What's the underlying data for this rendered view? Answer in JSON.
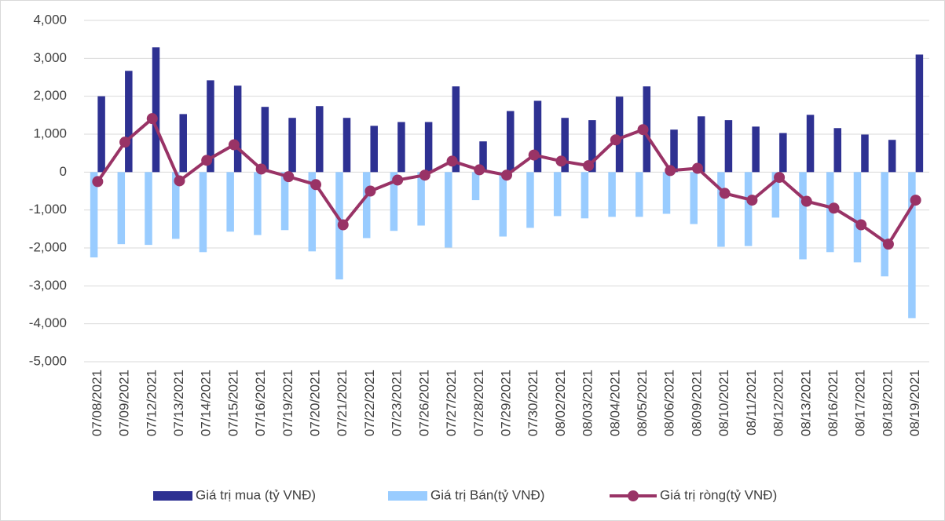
{
  "chart_data": {
    "type": "bar-line",
    "categories": [
      "07/08/2021",
      "07/09/2021",
      "07/12/2021",
      "07/13/2021",
      "07/14/2021",
      "07/15/2021",
      "07/16/2021",
      "07/19/2021",
      "07/20/2021",
      "07/21/2021",
      "07/22/2021",
      "07/23/2021",
      "07/26/2021",
      "07/27/2021",
      "07/28/2021",
      "07/29/2021",
      "07/30/2021",
      "08/02/2021",
      "08/03/2021",
      "08/04/2021",
      "08/05/2021",
      "08/06/2021",
      "08/09/2021",
      "08/10/2021",
      "08/11/2021",
      "08/12/2021",
      "08/13/2021",
      "08/16/2021",
      "08/17/2021",
      "08/18/2021",
      "08/19/2021"
    ],
    "series": [
      {
        "name": "Giá trị mua (tỷ VNĐ)",
        "color": "#2e3192",
        "kind": "bar",
        "values": [
          2000,
          2670,
          3290,
          1530,
          2420,
          2280,
          1720,
          1430,
          1740,
          1430,
          1220,
          1320,
          1320,
          2260,
          810,
          1610,
          1880,
          1430,
          1370,
          1990,
          2260,
          1120,
          1470,
          1370,
          1200,
          1030,
          1510,
          1160,
          990,
          850,
          3100
        ]
      },
      {
        "name": "Giá trị Bán(tỷ VNĐ)",
        "color": "#99ccff",
        "kind": "bar",
        "values": [
          -2250,
          -1900,
          -1920,
          -1760,
          -2110,
          -1570,
          -1660,
          -1530,
          -2090,
          -2830,
          -1740,
          -1550,
          -1410,
          -1990,
          -740,
          -1700,
          -1470,
          -1160,
          -1220,
          -1180,
          -1180,
          -1100,
          -1370,
          -1970,
          -1950,
          -1200,
          -2300,
          -2110,
          -2380,
          -2750,
          -3850
        ]
      },
      {
        "name": "Giá trị ròng(tỷ VNĐ)",
        "color": "#993366",
        "kind": "line",
        "values": [
          -250,
          790,
          1410,
          -230,
          310,
          720,
          80,
          -120,
          -330,
          -1390,
          -500,
          -210,
          -80,
          290,
          60,
          -80,
          450,
          290,
          170,
          850,
          1120,
          40,
          100,
          -560,
          -740,
          -140,
          -770,
          -950,
          -1390,
          -1900,
          -740
        ]
      }
    ],
    "ylim": [
      -5000,
      4000
    ],
    "yticks": [
      {
        "value": -5000,
        "label": "-5,000"
      },
      {
        "value": -4000,
        "label": "-4,000"
      },
      {
        "value": -3000,
        "label": "-3,000"
      },
      {
        "value": -2000,
        "label": "-2,000"
      },
      {
        "value": -1000,
        "label": "-1,000"
      },
      0,
      {
        "value": 1000,
        "label": "1,000"
      },
      {
        "value": 2000,
        "label": "2,000"
      },
      {
        "value": 3000,
        "label": "3,000"
      },
      {
        "value": 4000,
        "label": "4,000"
      }
    ],
    "grid": true,
    "legend": "bottom"
  }
}
